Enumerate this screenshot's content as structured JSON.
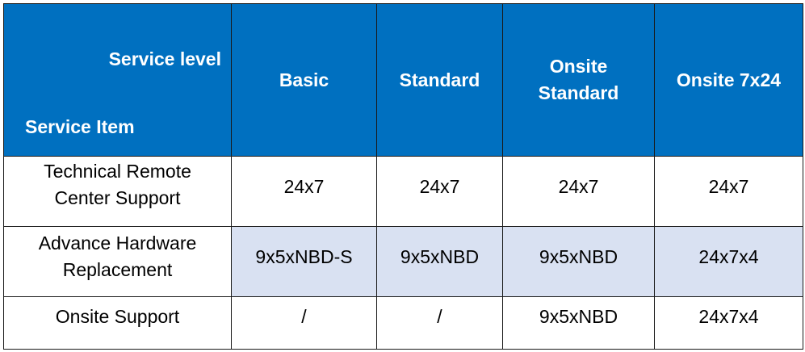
{
  "table": {
    "header": {
      "corner_top": "Service level",
      "corner_bottom": "Service Item",
      "columns": [
        "Basic",
        "Standard",
        "Onsite Standard",
        "Onsite 7x24"
      ]
    },
    "rows": [
      {
        "item": "Technical Remote Center Support",
        "values": [
          "24x7",
          "24x7",
          "24x7",
          "24x7"
        ],
        "shaded": false
      },
      {
        "item": "Advance Hardware Replacement",
        "values": [
          "9x5xNBD-S",
          "9x5xNBD",
          "9x5xNBD",
          "24x7x4"
        ],
        "shaded": true
      },
      {
        "item": "Onsite Support",
        "values": [
          "/",
          "/",
          "9x5xNBD",
          "24x7x4"
        ],
        "shaded": false
      }
    ],
    "colors": {
      "header_bg": "#0070c0",
      "header_text": "#ffffff",
      "shaded_row_bg": "#d9e1f2",
      "border": "#1a1a1a"
    }
  }
}
